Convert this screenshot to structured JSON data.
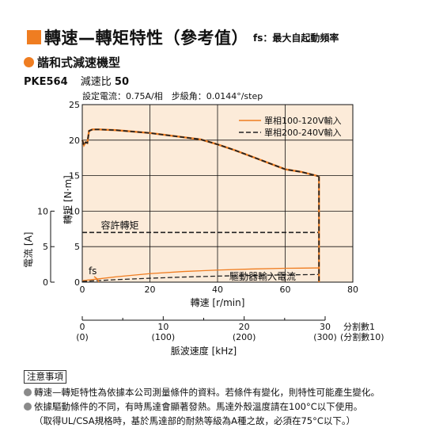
{
  "header": {
    "title": "轉速—轉矩特性（參考值）",
    "fs_note": "fs：最大自起動頻率"
  },
  "subheader": {
    "title": "諧和式減速機型"
  },
  "model": {
    "name": "PKE564",
    "ratio_label": "減速比",
    "ratio_value": "50"
  },
  "chart_data": {
    "type": "line",
    "condition_text": "設定電流：0.75A/相　步級角：0.0144°/step",
    "x": {
      "label": "轉速 [r/min]",
      "range": [
        0,
        80
      ],
      "ticks": [
        "0",
        "20",
        "40",
        "60",
        "80"
      ]
    },
    "y_torque": {
      "label": "轉矩 [N·m]",
      "range": [
        0,
        25
      ],
      "ticks": [
        "0",
        "5",
        "10",
        "15",
        "20",
        "25"
      ]
    },
    "y_current": {
      "label": "電流 [A]",
      "range": [
        0,
        10
      ],
      "ticks": [
        "0",
        "5",
        "10"
      ]
    },
    "pulse_axis": {
      "label": "脈波速度 [kHz]",
      "ticks_div1": [
        "0",
        "10",
        "20",
        "30"
      ],
      "ticks_div10": [
        "(0)",
        "(100)",
        "(200)",
        "(300)"
      ],
      "div1_label": "分割數1",
      "div10_label": "(分割數10)"
    },
    "series": [
      {
        "name": "單相100-120V輸入",
        "style": "solid",
        "color": "#ef7d21",
        "x": [
          0,
          0.5,
          1,
          1.5,
          2,
          3,
          5,
          10,
          20,
          30,
          35,
          40,
          45,
          50,
          55,
          60,
          65,
          70
        ],
        "y": [
          20,
          19.3,
          19.7,
          19.6,
          21.3,
          21.5,
          21.5,
          21.4,
          21,
          20.4,
          20.1,
          19.4,
          18.6,
          17.7,
          16.8,
          15.9,
          15.5,
          14.9
        ]
      },
      {
        "name": "單相200-240V輸入",
        "style": "dashed",
        "color": "#222222",
        "x": [
          0,
          0.5,
          1,
          1.5,
          2,
          3,
          5,
          10,
          20,
          30,
          35,
          40,
          45,
          50,
          55,
          60,
          65,
          70
        ],
        "y": [
          20,
          19.3,
          19.7,
          19.6,
          21.3,
          21.5,
          21.5,
          21.4,
          21,
          20.4,
          20.1,
          19.4,
          18.6,
          17.7,
          16.8,
          15.9,
          15.5,
          14.9
        ]
      }
    ],
    "allowable_torque": {
      "label": "容許轉矩",
      "value": 7,
      "x_range": [
        0,
        70
      ]
    },
    "driver_current": {
      "label": "驅動器輸入電流",
      "series": [
        {
          "style": "solid",
          "color": "#ef7d21",
          "x": [
            0,
            10,
            20,
            30,
            40,
            50,
            60,
            70
          ],
          "y": [
            0.2,
            0.75,
            1.2,
            1.5,
            1.7,
            1.85,
            1.95,
            2.0
          ]
        },
        {
          "style": "dashed",
          "color": "#222222",
          "x": [
            0,
            10,
            20,
            30,
            40,
            50,
            60,
            70
          ],
          "y": [
            0.1,
            0.35,
            0.55,
            0.72,
            0.85,
            0.95,
            1.02,
            1.08
          ]
        }
      ]
    },
    "fs": {
      "label": "fs",
      "x": 3.5
    },
    "legend_position": "top-right",
    "grid": true
  },
  "notes": {
    "title": "注意事項",
    "items": [
      "轉速—轉矩特性為依據本公司測量條件的資料。若條件有變化，則特性可能產生變化。",
      "依據驅動條件的不同，有時馬達會顯著發熱。馬達外殼溫度請在100°C以下使用。",
      "（取得UL/CSA規格時，基於馬達部的耐熱等級為A種之故，必須在75°C以下。）"
    ]
  }
}
